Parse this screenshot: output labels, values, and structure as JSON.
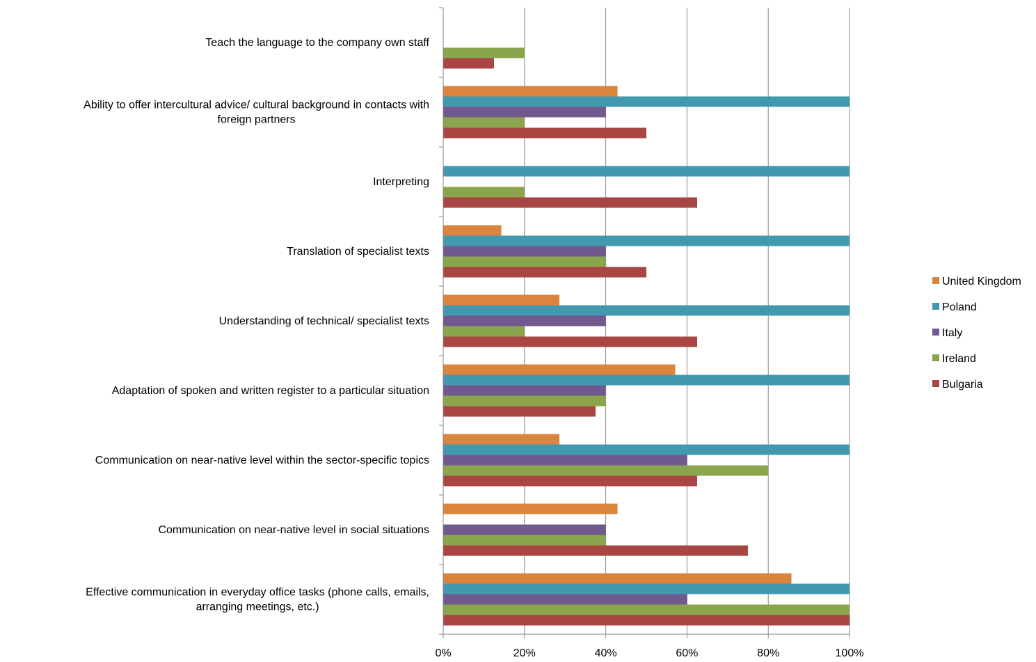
{
  "chart_data": {
    "type": "bar",
    "orientation": "horizontal",
    "categories": [
      [
        "Effective communication in everyday office tasks (phone calls, emails,",
        "arranging meetings, etc.)"
      ],
      [
        "Communication on near-native level in social situations"
      ],
      [
        "Communication on near-native level within the sector-specific topics"
      ],
      [
        "Adaptation of spoken and written register to a particular situation"
      ],
      [
        "Understanding of technical/ specialist texts"
      ],
      [
        "Translation of specialist texts"
      ],
      [
        "Interpreting"
      ],
      [
        "Ability to offer intercultural advice/ cultural background in contacts with",
        "foreign partners"
      ],
      [
        "Teach the language to the company own staff"
      ]
    ],
    "series": [
      {
        "name": "Bulgaria",
        "color": "#A94543",
        "values": [
          1.0,
          0.75,
          0.625,
          0.375,
          0.625,
          0.5,
          0.625,
          0.5,
          0.125
        ]
      },
      {
        "name": "Ireland",
        "color": "#8BA54D",
        "values": [
          1.0,
          0.4,
          0.8,
          0.4,
          0.2,
          0.4,
          0.2,
          0.2,
          0.2
        ]
      },
      {
        "name": "Italy",
        "color": "#71588F",
        "values": [
          0.6,
          0.4,
          0.6,
          0.4,
          0.4,
          0.4,
          0,
          0.4,
          0
        ]
      },
      {
        "name": "Poland",
        "color": "#4198AF",
        "values": [
          1.0,
          0,
          1.0,
          1.0,
          1.0,
          1.0,
          1.0,
          1.0,
          0
        ]
      },
      {
        "name": "United Kingdom",
        "color": "#DB843D",
        "values": [
          0.857,
          0.429,
          0.286,
          0.571,
          0.286,
          0.143,
          0,
          0.429,
          0
        ]
      }
    ],
    "xlim": [
      0,
      1
    ],
    "xticks": [
      0,
      0.2,
      0.4,
      0.6,
      0.8,
      1.0
    ],
    "xtick_labels": [
      "0%",
      "20%",
      "40%",
      "60%",
      "80%",
      "100%"
    ],
    "legend_position": "right",
    "legend_order": [
      "United Kingdom",
      "Poland",
      "Italy",
      "Ireland",
      "Bulgaria"
    ],
    "grid": "vertical"
  }
}
